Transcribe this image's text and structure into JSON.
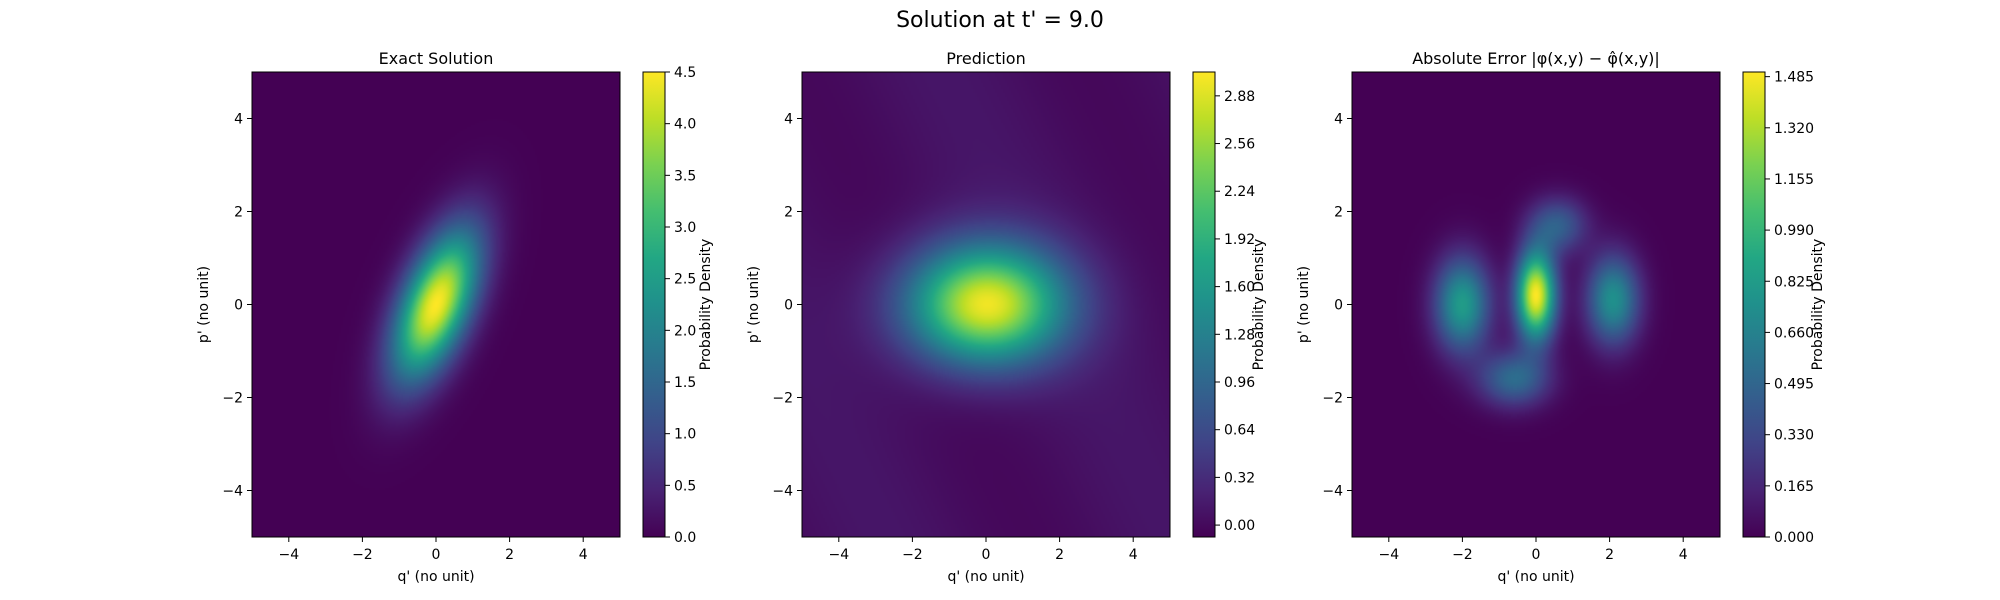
{
  "suptitle": "Solution at t' = 9.0",
  "chart_data": [
    {
      "type": "heatmap",
      "title": "Exact Solution",
      "xlabel": "q' (no unit)",
      "ylabel": "p' (no unit)",
      "xlim": [
        -5,
        5
      ],
      "ylim": [
        -5,
        5
      ],
      "xticks": [
        -4,
        -2,
        0,
        2,
        4
      ],
      "yticks": [
        -4,
        -2,
        0,
        2,
        4
      ],
      "colormap": "viridis",
      "colorbar": {
        "label": "Probability Density",
        "range": [
          0.0,
          4.5
        ],
        "ticks": [
          "0.0",
          "0.5",
          "1.0",
          "1.5",
          "2.0",
          "2.5",
          "3.0",
          "3.5",
          "4.0",
          "4.5"
        ]
      },
      "peak": {
        "q": 0,
        "p": 0,
        "value": 4.5
      },
      "shape": "tilted elliptical gaussian centered at origin"
    },
    {
      "type": "heatmap",
      "title": "Prediction",
      "xlabel": "q' (no unit)",
      "ylabel": "p' (no unit)",
      "xlim": [
        -5,
        5
      ],
      "ylim": [
        -5,
        5
      ],
      "xticks": [
        -4,
        -2,
        0,
        2,
        4
      ],
      "yticks": [
        -4,
        -2,
        0,
        2,
        4
      ],
      "colormap": "viridis",
      "colorbar": {
        "label": "Probability Density",
        "range": [
          -0.08,
          3.04
        ],
        "ticks": [
          "0.00",
          "0.32",
          "0.64",
          "0.96",
          "1.28",
          "1.60",
          "1.92",
          "2.24",
          "2.56",
          "2.88"
        ]
      },
      "peak": {
        "q": 0,
        "p": 0,
        "value": 3.0
      },
      "shape": "horizontally elongated gaussian centered at origin"
    },
    {
      "type": "heatmap",
      "title": "Absolute Error |φ(x,y) − φ̂(x,y)|",
      "xlabel": "q' (no unit)",
      "ylabel": "p' (no unit)",
      "xlim": [
        -5,
        5
      ],
      "ylim": [
        -5,
        5
      ],
      "xticks": [
        -4,
        -2,
        0,
        2,
        4
      ],
      "yticks": [
        -4,
        -2,
        0,
        2,
        4
      ],
      "colormap": "viridis",
      "colorbar": {
        "label": "Probability Density",
        "range": [
          0.0,
          1.5
        ],
        "ticks": [
          "0.000",
          "0.165",
          "0.330",
          "0.495",
          "0.660",
          "0.825",
          "0.990",
          "1.155",
          "1.320",
          "1.485"
        ]
      },
      "peak": {
        "q": 0,
        "p": 0,
        "value": 1.5
      },
      "shape": "three lobes near q = -2, 0, 2 with a weaker lobe below center"
    }
  ]
}
